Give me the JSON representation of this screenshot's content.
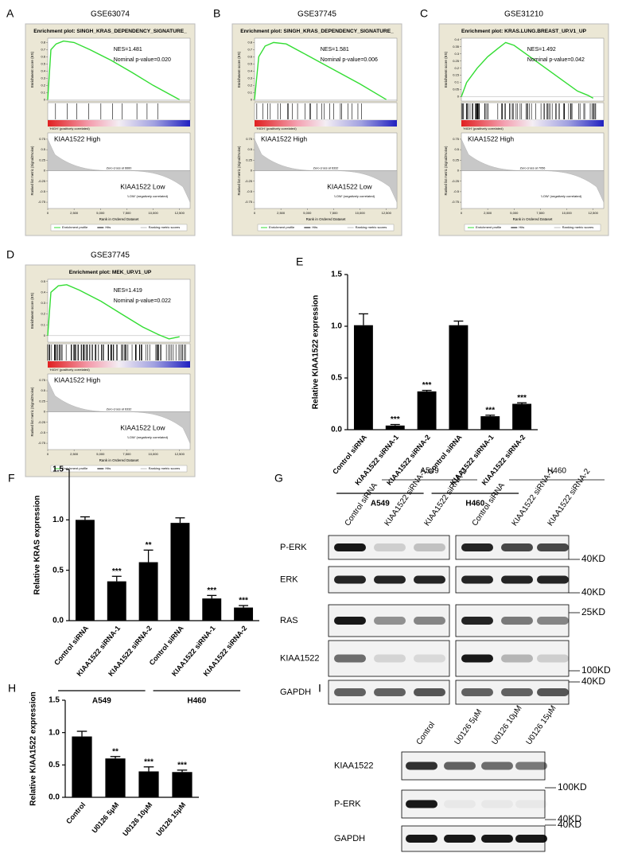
{
  "gsea_common": {
    "es_label": "Enrichment score (ES)",
    "rm_label": "Ranked list metric (Signal2Noise)",
    "x_label": "Rank in Ordered Dataset",
    "legend": [
      "Enrichment profile",
      "Hits",
      "Ranking metric scores"
    ],
    "pos_label": "'HIGH' (positively correlated)",
    "neg_label": "'LOW' (negatively correlated)",
    "xlim": [
      0,
      13500
    ],
    "xticks": [
      0,
      {
        "value": 2500,
        "label": "2,500"
      },
      {
        "value": 5000,
        "label": "5,000"
      },
      {
        "value": 7500,
        "label": "7,500"
      },
      {
        "value": 10000,
        "label": "10,000"
      },
      {
        "value": 12500,
        "label": "12,500"
      }
    ],
    "rm_ylim": [
      -0.9,
      0.9
    ],
    "rm_yticks": [
      0.75,
      0.5,
      0.25,
      0,
      -0.25,
      -0.5,
      -0.75
    ]
  },
  "gsea": [
    {
      "letter": "A",
      "dataset": "GSE63074",
      "title": "Enrichment plot: SINGH_KRAS_DEPENDENCY_SIGNATURE_",
      "nes": "NES=1.481",
      "pvalue": "Nominal p-value=0.020",
      "high": "KIAA1522 High",
      "low": "KIAA1522 Low",
      "zero_cross": "Zero cross at 6660",
      "es_x": [
        0,
        300,
        800,
        1500,
        2500,
        4000,
        6000,
        8000,
        10000,
        12500
      ],
      "es": [
        0,
        0.7,
        0.78,
        0.82,
        0.8,
        0.7,
        0.55,
        0.38,
        0.2,
        0
      ],
      "es_ylim": [
        -0.02,
        0.86
      ],
      "es_yticks": [
        0,
        0.1,
        0.2,
        0.3,
        0.4,
        0.5,
        0.6,
        0.7,
        0.8
      ]
    },
    {
      "letter": "B",
      "dataset": "GSE37745",
      "title": "Enrichment plot: SINGH_KRAS_DEPENDENCY_SIGNATURE_",
      "nes": "NES=1.581",
      "pvalue": "Nominal p-value=0.006",
      "high": "KIAA1522 High",
      "low": "KIAA1522 Low",
      "zero_cross": "Zero cross at 6332",
      "es_x": [
        0,
        400,
        1000,
        1800,
        3000,
        5000,
        7500,
        10000,
        12500
      ],
      "es": [
        0,
        0.6,
        0.75,
        0.8,
        0.78,
        0.62,
        0.42,
        0.22,
        0
      ],
      "es_ylim": [
        -0.02,
        0.86
      ],
      "es_yticks": [
        0,
        0.1,
        0.2,
        0.3,
        0.4,
        0.5,
        0.6,
        0.7,
        0.8
      ]
    },
    {
      "letter": "C",
      "dataset": "GSE31210",
      "title": "Enrichment plot: KRAS.LUNG.BREAST_UP.V1_UP",
      "nes": "NES=1.492",
      "pvalue": "Nominal p-value=0.042",
      "high": "KIAA1522 High",
      "zero_cross": "Zero cross at 7056",
      "es_x": [
        0,
        500,
        1500,
        2500,
        3500,
        4200,
        5000,
        6500,
        8000,
        9500,
        11000,
        12000,
        12500
      ],
      "es": [
        0,
        0.1,
        0.2,
        0.28,
        0.34,
        0.38,
        0.36,
        0.28,
        0.2,
        0.12,
        0.04,
        0.01,
        -0.01
      ],
      "es_ylim": [
        -0.03,
        0.41
      ],
      "es_yticks": [
        0,
        0.05,
        0.1,
        0.15,
        0.2,
        0.25,
        0.3,
        0.35,
        0.4
      ]
    },
    {
      "letter": "D",
      "dataset": "GSE37745",
      "title": "Enrichment plot: MEK_UP.V1_UP",
      "nes": "NES=1.419",
      "pvalue": "Nominal p-value=0.022",
      "high": "KIAA1522 High",
      "low": "KIAA1522 Low",
      "zero_cross": "Zero cross at 6332",
      "es_x": [
        0,
        300,
        1000,
        1800,
        3000,
        5000,
        7000,
        9000,
        10500,
        11500,
        12500
      ],
      "es": [
        0,
        0.4,
        0.46,
        0.47,
        0.42,
        0.32,
        0.2,
        0.08,
        0.01,
        -0.03,
        -0.01
      ],
      "es_ylim": [
        -0.06,
        0.52
      ],
      "es_yticks": [
        0,
        0.1,
        0.2,
        0.3,
        0.4,
        0.5
      ]
    }
  ],
  "chart_data": [
    {
      "type": "bar",
      "panel": "E",
      "y_label": "Relative KIAA1522 expression",
      "categories": [
        "Control siRNA",
        "KIAA1522 siRNA-1",
        "KIAA1522 siRNA-2",
        "Control siRNA",
        "KIAA1522 siRNA-1",
        "KIAA1522 siRNA-2"
      ],
      "values": [
        1.01,
        0.04,
        0.37,
        1.01,
        0.13,
        0.25
      ],
      "errors": [
        0.11,
        0.01,
        0.01,
        0.04,
        0.01,
        0.01
      ],
      "significance": [
        null,
        "***",
        "***",
        null,
        "***",
        "***"
      ],
      "groups": [
        "A549",
        "H460"
      ],
      "color": "#000000",
      "ylim": [
        0,
        1.5
      ],
      "yticks": [
        {
          "value": 0,
          "label": "0.0"
        },
        0.5,
        {
          "value": 1,
          "label": "1.0"
        },
        1.5
      ]
    },
    {
      "type": "bar",
      "panel": "F",
      "y_label": "Relative KRAS expression",
      "categories": [
        "Control siRNA",
        "KIAA1522 siRNA-1",
        "KIAA1522 siRNA-2",
        "Control siRNA",
        "KIAA1522 siRNA-1",
        "KIAA1522 siRNA-2"
      ],
      "values": [
        1.0,
        0.39,
        0.58,
        0.97,
        0.22,
        0.13
      ],
      "errors": [
        0.03,
        0.05,
        0.12,
        0.05,
        0.03,
        0.02
      ],
      "significance": [
        null,
        "***",
        "**",
        null,
        "***",
        "***"
      ],
      "groups": [
        "A549",
        "H460"
      ],
      "color": "#000000",
      "ylim": [
        0,
        1.5
      ],
      "yticks": [
        {
          "value": 0,
          "label": "0.0"
        },
        0.5,
        {
          "value": 1,
          "label": "1.0"
        },
        1.5
      ]
    },
    {
      "type": "bar",
      "panel": "H",
      "y_label": "Relative KIAA1522 expression",
      "categories": [
        "Control",
        "U0126 5μM",
        "U0126 10μM",
        "U0126 15μM"
      ],
      "values": [
        0.94,
        0.6,
        0.4,
        0.39
      ],
      "errors": [
        0.08,
        0.03,
        0.07,
        0.03
      ],
      "significance": [
        null,
        "**",
        "***",
        "***"
      ],
      "color": "#000000",
      "ylim": [
        0,
        1.5
      ],
      "yticks": [
        {
          "value": 0,
          "label": "0.0"
        },
        0.5,
        {
          "value": 1,
          "label": "1.0"
        },
        1.5
      ]
    }
  ],
  "blots": [
    {
      "panel": "G",
      "groups": [
        {
          "name": "A549",
          "lanes": [
            "Control siRNA",
            "KIAA1522 siRNA-1",
            "KIAA1522 siRNA-2"
          ]
        },
        {
          "name": "H460",
          "lanes": [
            "Control siRNA",
            "KIAA1522 siRNA-1",
            "KIAA1522 siRNA-2"
          ]
        }
      ],
      "rows": [
        "P-ERK",
        "ERK",
        "RAS",
        "KIAA1522",
        "GAPDH"
      ],
      "markers": [
        "40KD",
        "40KD",
        "25KD",
        "100KD",
        "40KD"
      ]
    },
    {
      "panel": "I",
      "groups": [
        {
          "lanes": [
            "Control",
            "U0126 5μM",
            "U0126 10μM",
            "U0126 15μM"
          ]
        }
      ],
      "rows": [
        "KIAA1522",
        "P-ERK",
        "GAPDH"
      ],
      "markers": [
        "100KD",
        "40KD",
        "40KD"
      ]
    }
  ]
}
